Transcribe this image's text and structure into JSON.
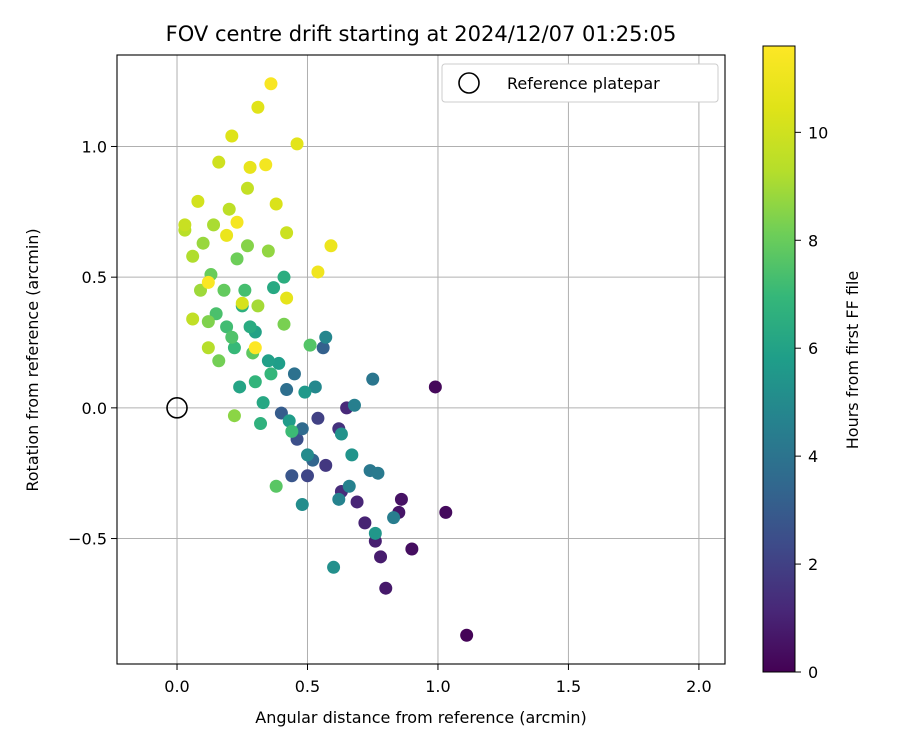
{
  "chart_data": {
    "type": "scatter",
    "title": "FOV centre drift starting at 2024/12/07 01:25:05",
    "xlabel": "Angular distance from reference (arcmin)",
    "ylabel": "Rotation from reference (arcmin)",
    "xlim": [
      -0.23,
      2.1
    ],
    "ylim": [
      -0.98,
      1.35
    ],
    "xticks": [
      0.0,
      0.5,
      1.0,
      1.5,
      2.0
    ],
    "xtick_labels": [
      "0.0",
      "0.5",
      "1.0",
      "1.5",
      "2.0"
    ],
    "yticks": [
      -0.5,
      0.0,
      0.5,
      1.0
    ],
    "ytick_labels": [
      "−0.5",
      "0.0",
      "0.5",
      "1.0"
    ],
    "grid": true,
    "legend": {
      "position": "top-right",
      "entries": [
        "Reference platepar"
      ]
    },
    "reference_point": {
      "x": 0.0,
      "y": 0.0
    },
    "colorbar": {
      "label": "Hours from first FF file",
      "colormap": "viridis",
      "min": 0,
      "max": 11.6,
      "ticks": [
        0,
        2,
        4,
        6,
        8,
        10
      ],
      "tick_labels": [
        "0",
        "2",
        "4",
        "6",
        "8",
        "10"
      ]
    },
    "points": [
      {
        "x": 1.11,
        "y": -0.87,
        "h": 0.1
      },
      {
        "x": 0.99,
        "y": 0.08,
        "h": 0.2
      },
      {
        "x": 1.03,
        "y": -0.4,
        "h": 0.3
      },
      {
        "x": 0.9,
        "y": -0.54,
        "h": 0.4
      },
      {
        "x": 0.86,
        "y": -0.35,
        "h": 0.5
      },
      {
        "x": 0.85,
        "y": -0.4,
        "h": 0.6
      },
      {
        "x": 0.8,
        "y": -0.69,
        "h": 0.7
      },
      {
        "x": 0.78,
        "y": -0.57,
        "h": 0.8
      },
      {
        "x": 0.76,
        "y": -0.51,
        "h": 0.9
      },
      {
        "x": 0.72,
        "y": -0.44,
        "h": 1.0
      },
      {
        "x": 0.69,
        "y": -0.36,
        "h": 1.1
      },
      {
        "x": 0.65,
        "y": 0.0,
        "h": 1.2
      },
      {
        "x": 0.63,
        "y": -0.32,
        "h": 1.3
      },
      {
        "x": 0.62,
        "y": -0.08,
        "h": 1.5
      },
      {
        "x": 0.57,
        "y": -0.22,
        "h": 1.7
      },
      {
        "x": 0.54,
        "y": -0.04,
        "h": 2.0
      },
      {
        "x": 0.5,
        "y": -0.26,
        "h": 2.2
      },
      {
        "x": 0.46,
        "y": -0.12,
        "h": 2.5
      },
      {
        "x": 0.44,
        "y": -0.26,
        "h": 2.8
      },
      {
        "x": 0.4,
        "y": -0.02,
        "h": 3.0
      },
      {
        "x": 0.56,
        "y": 0.23,
        "h": 3.2
      },
      {
        "x": 0.52,
        "y": -0.2,
        "h": 3.4
      },
      {
        "x": 0.48,
        "y": -0.08,
        "h": 3.6
      },
      {
        "x": 0.42,
        "y": 0.07,
        "h": 3.8
      },
      {
        "x": 0.45,
        "y": 0.13,
        "h": 3.9
      },
      {
        "x": 0.75,
        "y": 0.11,
        "h": 4.1
      },
      {
        "x": 0.74,
        "y": -0.24,
        "h": 4.2
      },
      {
        "x": 0.77,
        "y": -0.25,
        "h": 4.3
      },
      {
        "x": 0.83,
        "y": -0.42,
        "h": 4.4
      },
      {
        "x": 0.68,
        "y": 0.01,
        "h": 4.5
      },
      {
        "x": 0.66,
        "y": -0.3,
        "h": 4.6
      },
      {
        "x": 0.62,
        "y": -0.35,
        "h": 4.7
      },
      {
        "x": 0.57,
        "y": 0.27,
        "h": 4.8
      },
      {
        "x": 0.53,
        "y": 0.08,
        "h": 4.9
      },
      {
        "x": 0.5,
        "y": -0.18,
        "h": 5.0
      },
      {
        "x": 0.48,
        "y": -0.37,
        "h": 5.1
      },
      {
        "x": 0.6,
        "y": -0.61,
        "h": 5.2
      },
      {
        "x": 0.63,
        "y": -0.1,
        "h": 5.3
      },
      {
        "x": 0.67,
        "y": -0.18,
        "h": 5.4
      },
      {
        "x": 0.76,
        "y": -0.48,
        "h": 5.5
      },
      {
        "x": 0.49,
        "y": 0.06,
        "h": 5.6
      },
      {
        "x": 0.43,
        "y": -0.05,
        "h": 5.7
      },
      {
        "x": 0.39,
        "y": 0.17,
        "h": 5.8
      },
      {
        "x": 0.35,
        "y": 0.18,
        "h": 5.9
      },
      {
        "x": 0.3,
        "y": 0.29,
        "h": 6.0
      },
      {
        "x": 0.24,
        "y": 0.08,
        "h": 6.1
      },
      {
        "x": 0.33,
        "y": 0.02,
        "h": 6.2
      },
      {
        "x": 0.37,
        "y": 0.46,
        "h": 6.3
      },
      {
        "x": 0.28,
        "y": 0.31,
        "h": 6.4
      },
      {
        "x": 0.41,
        "y": 0.5,
        "h": 6.5
      },
      {
        "x": 0.25,
        "y": 0.39,
        "h": 6.6
      },
      {
        "x": 0.32,
        "y": -0.06,
        "h": 6.7
      },
      {
        "x": 0.3,
        "y": 0.1,
        "h": 6.8
      },
      {
        "x": 0.36,
        "y": 0.13,
        "h": 6.9
      },
      {
        "x": 0.22,
        "y": 0.23,
        "h": 7.0
      },
      {
        "x": 0.44,
        "y": -0.09,
        "h": 7.1
      },
      {
        "x": 0.19,
        "y": 0.31,
        "h": 7.2
      },
      {
        "x": 0.26,
        "y": 0.45,
        "h": 7.3
      },
      {
        "x": 0.15,
        "y": 0.36,
        "h": 7.4
      },
      {
        "x": 0.21,
        "y": 0.27,
        "h": 7.5
      },
      {
        "x": 0.51,
        "y": 0.24,
        "h": 7.6
      },
      {
        "x": 0.38,
        "y": -0.3,
        "h": 7.7
      },
      {
        "x": 0.29,
        "y": 0.21,
        "h": 7.8
      },
      {
        "x": 0.18,
        "y": 0.45,
        "h": 7.9
      },
      {
        "x": 0.13,
        "y": 0.51,
        "h": 8.0
      },
      {
        "x": 0.23,
        "y": 0.57,
        "h": 8.1
      },
      {
        "x": 0.16,
        "y": 0.18,
        "h": 8.2
      },
      {
        "x": 0.41,
        "y": 0.32,
        "h": 8.3
      },
      {
        "x": 0.12,
        "y": 0.33,
        "h": 8.4
      },
      {
        "x": 0.27,
        "y": 0.62,
        "h": 8.5
      },
      {
        "x": 0.22,
        "y": -0.03,
        "h": 8.6
      },
      {
        "x": 0.35,
        "y": 0.6,
        "h": 8.7
      },
      {
        "x": 0.1,
        "y": 0.63,
        "h": 8.8
      },
      {
        "x": 0.09,
        "y": 0.45,
        "h": 8.9
      },
      {
        "x": 0.31,
        "y": 0.39,
        "h": 9.0
      },
      {
        "x": 0.14,
        "y": 0.7,
        "h": 9.1
      },
      {
        "x": 0.06,
        "y": 0.58,
        "h": 9.2
      },
      {
        "x": 0.12,
        "y": 0.23,
        "h": 9.3
      },
      {
        "x": 0.03,
        "y": 0.68,
        "h": 9.4
      },
      {
        "x": 0.2,
        "y": 0.76,
        "h": 9.5
      },
      {
        "x": 0.06,
        "y": 0.34,
        "h": 9.6
      },
      {
        "x": 0.27,
        "y": 0.84,
        "h": 9.7
      },
      {
        "x": 0.03,
        "y": 0.7,
        "h": 9.8
      },
      {
        "x": 0.42,
        "y": 0.67,
        "h": 9.9
      },
      {
        "x": 0.16,
        "y": 0.94,
        "h": 10.0
      },
      {
        "x": 0.08,
        "y": 0.79,
        "h": 10.1
      },
      {
        "x": 0.25,
        "y": 0.4,
        "h": 10.2
      },
      {
        "x": 0.38,
        "y": 0.78,
        "h": 10.3
      },
      {
        "x": 0.21,
        "y": 1.04,
        "h": 10.4
      },
      {
        "x": 0.31,
        "y": 1.15,
        "h": 10.5
      },
      {
        "x": 0.46,
        "y": 1.01,
        "h": 10.6
      },
      {
        "x": 0.42,
        "y": 0.42,
        "h": 10.7
      },
      {
        "x": 0.28,
        "y": 0.92,
        "h": 10.8
      },
      {
        "x": 0.19,
        "y": 0.66,
        "h": 10.9
      },
      {
        "x": 0.59,
        "y": 0.62,
        "h": 11.0
      },
      {
        "x": 0.54,
        "y": 0.52,
        "h": 11.1
      },
      {
        "x": 0.34,
        "y": 0.93,
        "h": 11.2
      },
      {
        "x": 0.23,
        "y": 0.71,
        "h": 11.3
      },
      {
        "x": 0.36,
        "y": 1.24,
        "h": 11.4
      },
      {
        "x": 0.12,
        "y": 0.48,
        "h": 11.5
      },
      {
        "x": 0.3,
        "y": 0.23,
        "h": 11.6
      }
    ]
  }
}
